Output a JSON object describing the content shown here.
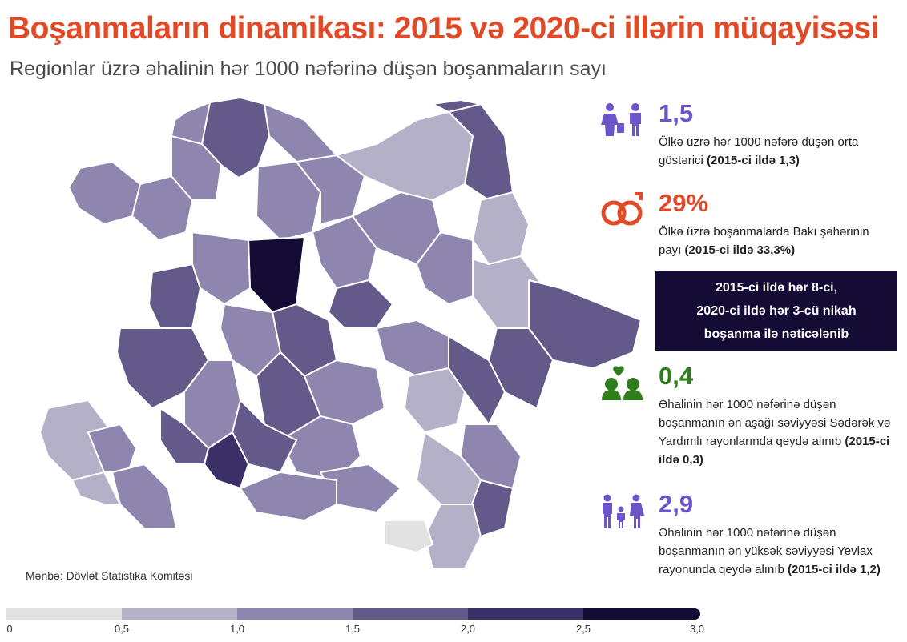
{
  "header": {
    "title": "Boşanmaların dinamikası: 2015 və 2020-ci illərin müqayisəsi",
    "subtitle": "Regionlar üzrə əhalinin hər 1000 nəfərinə düşən boşanmaların sayı"
  },
  "source": "Mənbə: Dövlət Statistika Komitəsi",
  "colors": {
    "accent_orange": "#e04a27",
    "accent_purple": "#6c55c9",
    "accent_green": "#2f7d1c",
    "callout_bg": "#150c36"
  },
  "stats": [
    {
      "icon": "divorcing-couple-icon",
      "value": "1,5",
      "color": "#6c55c9",
      "text": "Ölkə üzrə hər 1000 nəfərə düşən orta göstərici",
      "bold": "(2015-ci ildə 1,3)"
    },
    {
      "icon": "broken-rings-icon",
      "value": "29%",
      "color": "#e04a27",
      "text": "Ölkə üzrə boşanmalarda Bakı şəhərinin payı",
      "bold": "(2015-ci ildə 33,3%)"
    },
    {
      "icon": "broken-heart-couple-icon",
      "value": "0,4",
      "color": "#2f7d1c",
      "text": "Əhalinin hər 1000 nəfərinə düşən boşanmanın ən aşağı səviyyəsi Sədərək və Yardımlı rayonlarında qeydə alınıb",
      "bold": "(2015-ci ildə 0,3)"
    },
    {
      "icon": "family-separated-icon",
      "value": "2,9",
      "color": "#6c55c9",
      "text": "Əhalinin hər 1000 nəfərinə düşən boşanmanın ən yüksək səviyyəsi Yevlax rayonunda qeydə alınıb",
      "bold": "(2015-ci ildə 1,2)"
    }
  ],
  "callout": {
    "line1": "2015-ci ildə hər 8-ci,",
    "line2": "2020-ci ildə hər 3-cü nikah",
    "line3": "boşanma ilə nəticələnib"
  },
  "legend": {
    "ticks": [
      "0",
      "0,5",
      "1,0",
      "1,5",
      "2,0",
      "2,5",
      "3,0"
    ],
    "colors": [
      "#e2e2e2",
      "#b4b0c8",
      "#8e86ae",
      "#635a8a",
      "#3b2f68",
      "#150c36"
    ]
  },
  "map": {
    "scale_colors": [
      "#e2e2e2",
      "#b4b0c8",
      "#8e86ae",
      "#635a8a",
      "#3b2f68",
      "#150c36"
    ]
  }
}
